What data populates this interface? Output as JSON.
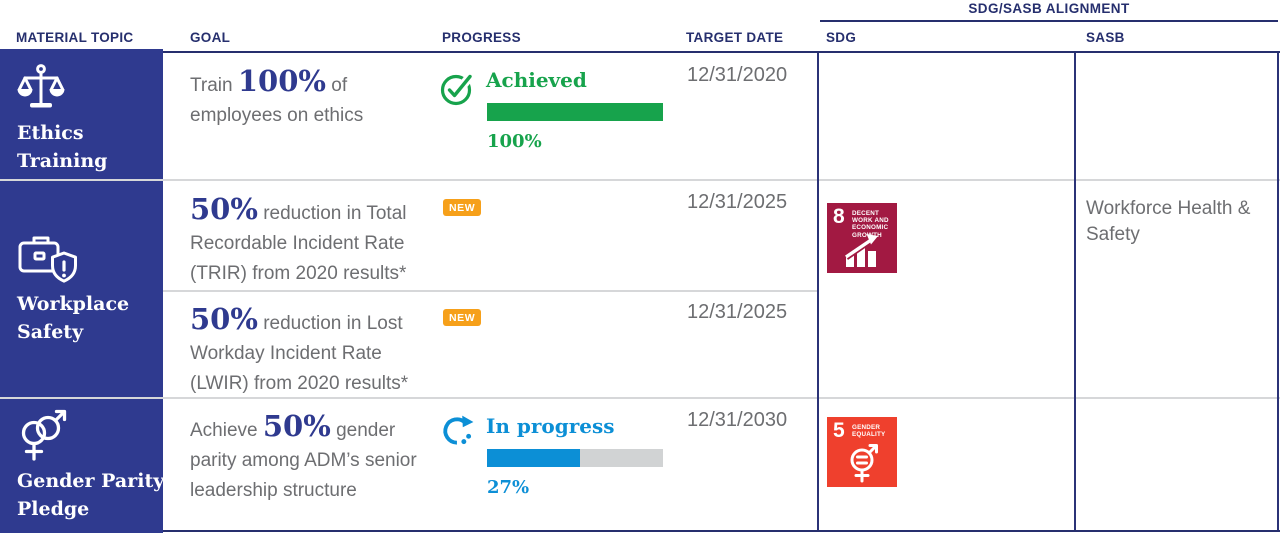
{
  "header": {
    "alignment_title": "SDG/SASB ALIGNMENT",
    "col_material_topic": "MATERIAL TOPIC",
    "col_goal": "GOAL",
    "col_progress": "PROGRESS",
    "col_target_date": "TARGET DATE",
    "col_sdg": "SDG",
    "col_sasb": "SASB"
  },
  "topics": [
    {
      "line1": "Ethics",
      "line2": "Training",
      "icon": "scales-of-justice-icon"
    },
    {
      "line1": "Workplace",
      "line2": "Safety",
      "icon": "briefcase-shield-icon"
    },
    {
      "line1": "Gender Parity",
      "line2": "Pledge",
      "icon": "gender-symbols-icon"
    }
  ],
  "goals": [
    {
      "prefix": "Train ",
      "highlight": "100%",
      "suffix": " of employees on ethics",
      "target_date": "12/31/2020",
      "status": "Achieved",
      "percent_label": "100%",
      "bar_fill_percent": 100
    },
    {
      "prefix": "",
      "highlight": "50%",
      "suffix": " reduction in Total Recordable Incident Rate (TRIR) from 2020 results*",
      "badge": "NEW",
      "target_date": "12/31/2025"
    },
    {
      "prefix": "",
      "highlight": "50%",
      "suffix": " reduction in Lost Workday Incident Rate (LWIR) from 2020 results*",
      "badge": "NEW",
      "target_date": "12/31/2025"
    },
    {
      "prefix": "Achieve ",
      "highlight": "50%",
      "suffix": " gender parity among ADM’s senior leadership structure",
      "target_date": "12/31/2030",
      "status": "In progress",
      "percent_label": "27%",
      "bar_fill_percent": 53
    }
  ],
  "sdg_badges": [
    {
      "number": "8",
      "title_line1": "DECENT WORK AND",
      "title_line2": "ECONOMIC GROWTH",
      "color": "#A21942"
    },
    {
      "number": "5",
      "title_line1": "GENDER",
      "title_line2": "EQUALITY",
      "color": "#EF402D"
    }
  ],
  "sasb": {
    "workforce_health_safety": "Workforce Health & Safety"
  },
  "colors": {
    "navy": "#2F3A8F",
    "header_navy": "#262F6E",
    "green": "#17A34C",
    "blue": "#0C8FD6",
    "orange": "#F6A01A",
    "text_gray": "#6D6E71",
    "divider_gray": "#D6D7D9",
    "sdg8": "#A21942",
    "sdg5": "#EF402D"
  }
}
